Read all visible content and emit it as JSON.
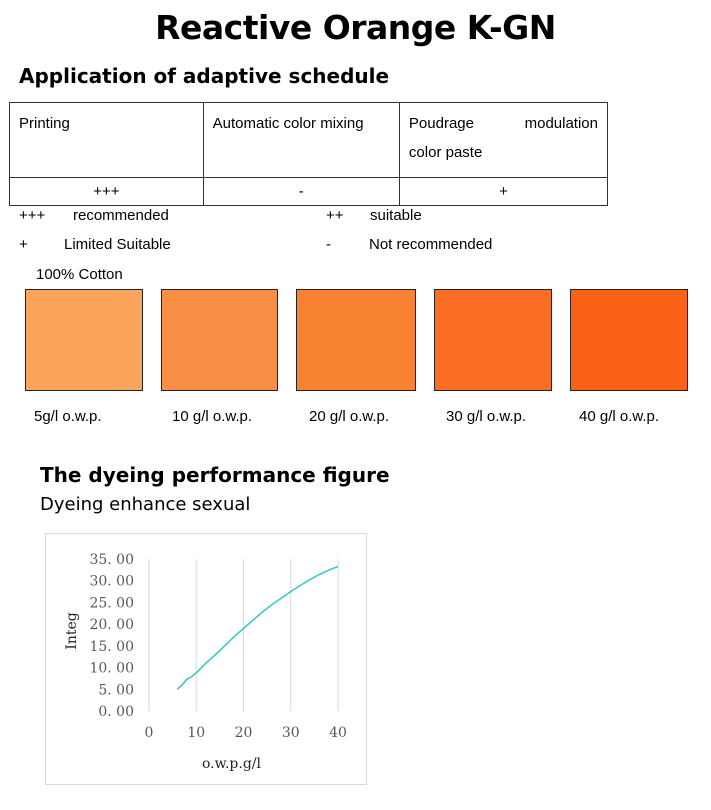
{
  "title": "Reactive Orange K-GN",
  "schedule": {
    "heading": "Application of adaptive schedule",
    "headers": [
      "Printing",
      "Automatic color mixing",
      "Poudrage",
      "modulation",
      "color paste"
    ],
    "values": [
      "+++",
      "-",
      "+"
    ]
  },
  "legend": [
    {
      "symbol": "+++",
      "text": "recommended"
    },
    {
      "symbol": "++",
      "text": "suitable"
    },
    {
      "symbol": "+",
      "text": "Limited Suitable"
    },
    {
      "symbol": "-",
      "text": "Not recommended"
    }
  ],
  "substrate": "100% Cotton",
  "swatches": [
    {
      "label": "5g/l o.w.p.",
      "color": "#FBA55C"
    },
    {
      "label": "10 g/l o.w.p.",
      "color": "#F98F44"
    },
    {
      "label": "20 g/l o.w.p.",
      "color": "#F98232"
    },
    {
      "label": "30 g/l o.w.p.",
      "color": "#F96E24"
    },
    {
      "label": "40 g/l o.w.p.",
      "color": "#FA6217"
    }
  ],
  "performance": {
    "heading": "The dyeing performance figure",
    "subheading": "Dyeing enhance sexual"
  },
  "chart_data": {
    "type": "line",
    "xlabel": "o.w.p.g/l",
    "ylabel": "Integ",
    "xlim": [
      0,
      40
    ],
    "ylim": [
      0,
      35
    ],
    "x_ticks": [
      "0",
      "10",
      "20",
      "30",
      "40"
    ],
    "y_ticks": [
      "0.00",
      "5.00",
      "10.00",
      "15.00",
      "20.00",
      "25.00",
      "30.00",
      "35.00"
    ],
    "grid": "vertical",
    "series": [
      {
        "color": "#3FC6C6",
        "x": [
          6,
          7,
          8,
          9,
          10,
          12,
          14,
          16,
          18,
          20,
          22,
          24,
          26,
          28,
          30,
          32,
          34,
          36,
          38,
          40
        ],
        "y": [
          5.0,
          6.0,
          7.3,
          7.9,
          8.8,
          11.0,
          12.9,
          15.0,
          17.1,
          19.0,
          20.9,
          22.8,
          24.5,
          26.0,
          27.5,
          28.9,
          30.2,
          31.4,
          32.4,
          33.3
        ]
      }
    ]
  }
}
